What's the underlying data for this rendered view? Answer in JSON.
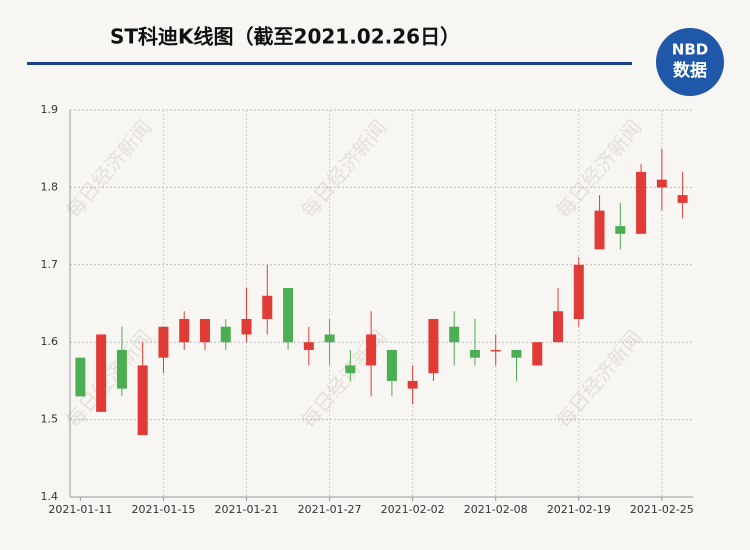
{
  "chart_data": {
    "type": "candlestick",
    "title": "ST科迪K线图（截至2021.02.26日）",
    "watermark": "每日经济新闻",
    "logo": {
      "brand": "NBD",
      "label": "数据"
    },
    "categories": [
      "2021-01-11",
      null,
      null,
      null,
      "2021-01-15",
      null,
      null,
      null,
      "2021-01-21",
      null,
      null,
      null,
      "2021-01-27",
      null,
      null,
      null,
      "2021-02-02",
      null,
      null,
      null,
      "2021-02-08",
      null,
      null,
      null,
      "2021-02-19",
      null,
      null,
      null,
      "2021-02-25",
      null
    ],
    "open": [
      1.58,
      1.51,
      1.59,
      1.48,
      1.58,
      1.6,
      1.6,
      1.62,
      1.61,
      1.63,
      1.67,
      1.59,
      1.61,
      1.57,
      1.57,
      1.59,
      1.54,
      1.56,
      1.62,
      1.59,
      1.59,
      1.59,
      1.57,
      1.6,
      1.63,
      1.72,
      1.75,
      1.74,
      1.8,
      1.78
    ],
    "high": [
      1.58,
      1.61,
      1.62,
      1.6,
      1.62,
      1.64,
      1.63,
      1.63,
      1.67,
      1.7,
      1.67,
      1.62,
      1.63,
      1.59,
      1.64,
      1.59,
      1.57,
      1.63,
      1.64,
      1.63,
      1.61,
      1.59,
      1.6,
      1.67,
      1.71,
      1.79,
      1.78,
      1.83,
      1.85,
      1.82
    ],
    "low": [
      1.53,
      1.51,
      1.53,
      1.48,
      1.56,
      1.59,
      1.59,
      1.59,
      1.6,
      1.61,
      1.59,
      1.57,
      1.57,
      1.55,
      1.53,
      1.53,
      1.52,
      1.55,
      1.57,
      1.57,
      1.57,
      1.55,
      1.57,
      1.6,
      1.62,
      1.72,
      1.72,
      1.74,
      1.77,
      1.76
    ],
    "close": [
      1.53,
      1.61,
      1.54,
      1.57,
      1.62,
      1.63,
      1.63,
      1.6,
      1.63,
      1.66,
      1.6,
      1.6,
      1.6,
      1.56,
      1.61,
      1.55,
      1.55,
      1.63,
      1.6,
      1.58,
      1.59,
      1.58,
      1.6,
      1.64,
      1.7,
      1.77,
      1.74,
      1.82,
      1.81,
      1.79
    ],
    "up_color": "#e03b36",
    "down_color": "#4cae52",
    "ylim": [
      1.4,
      1.9
    ],
    "yticks": [
      1.4,
      1.5,
      1.6,
      1.7,
      1.8,
      1.9
    ],
    "grid": true
  }
}
